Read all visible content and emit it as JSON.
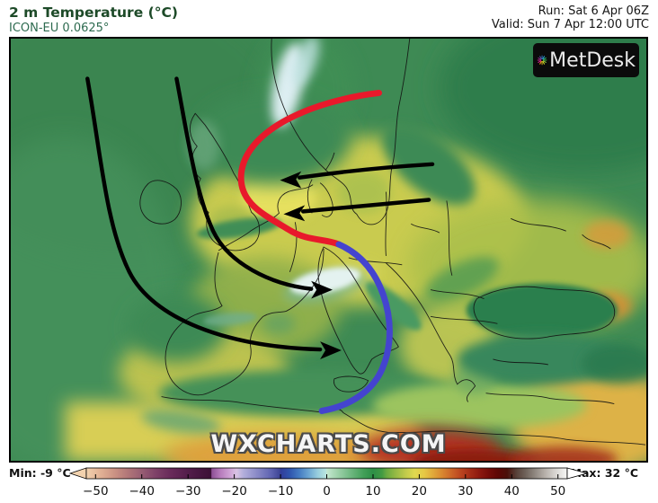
{
  "header": {
    "title": "2 m Temperature (°C)",
    "model": "ICON-EU 0.0625°",
    "run": "Run: Sat 6 Apr 06Z",
    "valid": "Valid: Sun 7 Apr 12:00 UTC"
  },
  "logo": {
    "text": "MetDesk",
    "ray_colors": [
      "#2b6cb0",
      "#29a8e0",
      "#2bb673",
      "#45b649",
      "#8dc63f",
      "#d7df23",
      "#c3a81e",
      "#f7941d",
      "#e0218a",
      "#c2258f",
      "#93278f",
      "#5b57a7"
    ]
  },
  "watermark": "WXCHARTS.COM",
  "map": {
    "sea_color": "#3e8a54"
  },
  "annotations": {
    "warm_front_color": "#e8192b",
    "cold_front_color": "#4444cf",
    "arrow_color": "#000000"
  },
  "colorbar": {
    "min_label": "Min: -9 °C",
    "max_label": "Max: 32 °C",
    "range": [
      -52,
      52
    ],
    "ticks": [
      "−50",
      "−40",
      "−30",
      "−20",
      "−10",
      "0",
      "10",
      "20",
      "30",
      "40",
      "50"
    ],
    "tick_values": [
      -50,
      -40,
      -30,
      -20,
      -10,
      0,
      10,
      20,
      30,
      40,
      50
    ],
    "stops": [
      {
        "t": -52,
        "c": "#f2d2ae"
      },
      {
        "t": -49,
        "c": "#e2b295"
      },
      {
        "t": -46,
        "c": "#cc9384"
      },
      {
        "t": -43,
        "c": "#b17678"
      },
      {
        "t": -40,
        "c": "#975d73"
      },
      {
        "t": -37,
        "c": "#7e4168"
      },
      {
        "t": -34,
        "c": "#6a2c5b"
      },
      {
        "t": -31,
        "c": "#59214f"
      },
      {
        "t": -28,
        "c": "#491842"
      },
      {
        "t": -25,
        "c": "#3c1136"
      },
      {
        "t": -24.9,
        "c": "#8d4f95"
      },
      {
        "t": -23,
        "c": "#b77cbc"
      },
      {
        "t": -21,
        "c": "#cfa2d5"
      },
      {
        "t": -19.5,
        "c": "#d9c3e3"
      },
      {
        "t": -18,
        "c": "#b2aedb"
      },
      {
        "t": -16,
        "c": "#9695cd"
      },
      {
        "t": -14,
        "c": "#7a7cbf"
      },
      {
        "t": -12,
        "c": "#5e63b1"
      },
      {
        "t": -10.1,
        "c": "#3d4495"
      },
      {
        "t": -10,
        "c": "#313c99"
      },
      {
        "t": -8,
        "c": "#2f55ae"
      },
      {
        "t": -6,
        "c": "#447bc2"
      },
      {
        "t": -4,
        "c": "#69a3d2"
      },
      {
        "t": -2,
        "c": "#97cdde"
      },
      {
        "t": -0.1,
        "c": "#bae5e0"
      },
      {
        "t": 0,
        "c": "#c5e8d1"
      },
      {
        "t": 2,
        "c": "#a4d5b0"
      },
      {
        "t": 4,
        "c": "#82c292"
      },
      {
        "t": 6,
        "c": "#61b074"
      },
      {
        "t": 8,
        "c": "#429f58"
      },
      {
        "t": 10,
        "c": "#2d8f46"
      },
      {
        "t": 11.9,
        "c": "#419a43"
      },
      {
        "t": 13,
        "c": "#6aaa40"
      },
      {
        "t": 15,
        "c": "#97ba45"
      },
      {
        "t": 17,
        "c": "#c0ca4b"
      },
      {
        "t": 19,
        "c": "#e0d84f"
      },
      {
        "t": 21,
        "c": "#e6c945"
      },
      {
        "t": 23,
        "c": "#e0a83a"
      },
      {
        "t": 25,
        "c": "#d8862f"
      },
      {
        "t": 27,
        "c": "#cb6428"
      },
      {
        "t": 29,
        "c": "#bb4520"
      },
      {
        "t": 31,
        "c": "#a42c17"
      },
      {
        "t": 33,
        "c": "#8d1910"
      },
      {
        "t": 35,
        "c": "#750d09"
      },
      {
        "t": 37,
        "c": "#5d0705"
      },
      {
        "t": 39,
        "c": "#4a0f09"
      },
      {
        "t": 41,
        "c": "#574038"
      },
      {
        "t": 43,
        "c": "#6f625a"
      },
      {
        "t": 45,
        "c": "#8f8780"
      },
      {
        "t": 47,
        "c": "#b3aca6"
      },
      {
        "t": 49,
        "c": "#d3cfcb"
      },
      {
        "t": 51,
        "c": "#ebeae8"
      },
      {
        "t": 52,
        "c": "#f6f5f4"
      }
    ]
  }
}
